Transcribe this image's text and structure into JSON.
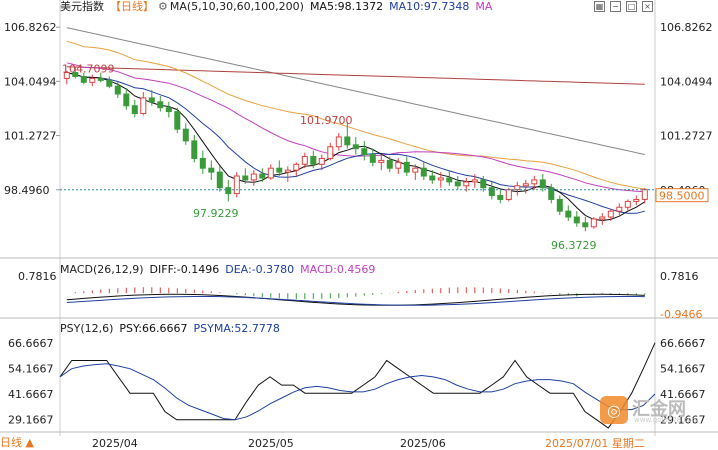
{
  "header": {
    "symbol": "美元指数",
    "period": "【日线】",
    "ma_label": "MA(5,10,30,60,100,200)",
    "ma5": "MA5:98.1372",
    "ma10": "MA10:97.7348",
    "ma_more": "MA"
  },
  "macd_header": {
    "label": "MACD(26,12,9)",
    "diff": "DIFF:-0.1496",
    "dea": "DEA:-0.3780",
    "macd": "MACD:0.4569"
  },
  "psy_header": {
    "label": "PSY(12,6)",
    "psy": "PSY:66.6667",
    "psyma": "PSYMA:52.7778"
  },
  "bottom_tab": "日线 ▲",
  "watermark": {
    "text": "汇金网",
    "url": "www.gold678.com",
    "icon": "gold-logo-icon"
  },
  "colors": {
    "up": "#e04040",
    "down": "#3a9a3a",
    "ma5": "#111111",
    "ma10": "#2040a0",
    "ma30": "#c040c0",
    "ma60": "#e8a040",
    "ma100": "#b04040",
    "ma200": "#888888",
    "price_line": "#2a8aa8",
    "highlight": "#e87722"
  },
  "chart_data": [
    {
      "type": "candlestick",
      "title": "美元指数",
      "x": [
        "2025/04",
        "2025/05",
        "2025/06",
        "2025/07/01 星期二"
      ],
      "y_ticks": [
        "106.8262",
        "104.0494",
        "101.2727",
        "98.4960"
      ],
      "ylim": [
        95.0,
        107.5
      ],
      "last_price": "98.5000",
      "last_price_value": 98.5,
      "annotations": [
        {
          "text": "104.7099",
          "value": 104.7099
        },
        {
          "text": "101.9700",
          "value": 101.97
        },
        {
          "text": "97.9229",
          "value": 97.9229
        },
        {
          "text": "96.3729",
          "value": 96.3729
        }
      ],
      "candles": [
        [
          104.2,
          104.6,
          103.9,
          104.5
        ],
        [
          104.5,
          104.8,
          104.2,
          104.3
        ],
        [
          104.3,
          104.5,
          103.9,
          104.0
        ],
        [
          104.0,
          104.4,
          103.8,
          104.2
        ],
        [
          104.2,
          104.5,
          104.0,
          104.1
        ],
        [
          104.1,
          104.3,
          103.7,
          103.8
        ],
        [
          103.8,
          104.0,
          103.2,
          103.4
        ],
        [
          103.4,
          103.7,
          102.6,
          102.8
        ],
        [
          102.8,
          103.1,
          102.2,
          102.4
        ],
        [
          102.4,
          103.5,
          102.3,
          103.2
        ],
        [
          103.2,
          103.6,
          102.8,
          103.0
        ],
        [
          103.0,
          103.3,
          102.5,
          102.7
        ],
        [
          102.7,
          103.0,
          102.2,
          102.5
        ],
        [
          102.5,
          102.7,
          101.4,
          101.6
        ],
        [
          101.6,
          101.9,
          100.8,
          101.0
        ],
        [
          101.0,
          101.3,
          99.9,
          100.1
        ],
        [
          100.1,
          100.5,
          99.3,
          99.6
        ],
        [
          99.6,
          100.0,
          99.0,
          99.4
        ],
        [
          99.4,
          99.7,
          98.4,
          98.6
        ],
        [
          98.6,
          99.0,
          97.9,
          98.3
        ],
        [
          98.3,
          99.4,
          98.1,
          99.2
        ],
        [
          99.2,
          99.6,
          98.8,
          99.0
        ],
        [
          99.0,
          99.5,
          98.7,
          99.3
        ],
        [
          99.3,
          99.6,
          98.9,
          99.1
        ],
        [
          99.1,
          99.8,
          99.0,
          99.6
        ],
        [
          99.6,
          100.0,
          99.2,
          99.4
        ],
        [
          99.4,
          99.7,
          98.9,
          99.5
        ],
        [
          99.5,
          99.9,
          99.2,
          99.8
        ],
        [
          99.8,
          100.4,
          99.6,
          100.2
        ],
        [
          100.2,
          100.5,
          99.6,
          99.8
        ],
        [
          99.8,
          100.3,
          99.5,
          100.1
        ],
        [
          100.1,
          100.9,
          100.0,
          100.7
        ],
        [
          100.7,
          101.4,
          100.5,
          101.2
        ],
        [
          101.2,
          101.97,
          100.6,
          100.8
        ],
        [
          100.8,
          101.2,
          100.3,
          100.6
        ],
        [
          100.6,
          101.0,
          100.0,
          100.3
        ],
        [
          100.3,
          100.6,
          99.7,
          99.9
        ],
        [
          99.9,
          100.3,
          99.5,
          100.0
        ],
        [
          100.0,
          100.2,
          99.4,
          99.6
        ],
        [
          99.6,
          100.1,
          99.3,
          99.9
        ],
        [
          99.9,
          100.2,
          99.2,
          99.4
        ],
        [
          99.4,
          99.8,
          99.0,
          99.6
        ],
        [
          99.6,
          99.9,
          99.0,
          99.2
        ],
        [
          99.2,
          99.5,
          98.8,
          99.0
        ],
        [
          99.0,
          99.4,
          98.6,
          99.1
        ],
        [
          99.1,
          99.5,
          98.7,
          98.9
        ],
        [
          98.9,
          99.2,
          98.5,
          98.7
        ],
        [
          98.7,
          99.1,
          98.4,
          98.9
        ],
        [
          98.9,
          99.3,
          98.6,
          99.0
        ],
        [
          99.0,
          99.2,
          98.4,
          98.6
        ],
        [
          98.6,
          98.9,
          98.0,
          98.2
        ],
        [
          98.2,
          98.5,
          97.8,
          98.0
        ],
        [
          98.0,
          98.6,
          97.9,
          98.5
        ],
        [
          98.5,
          98.9,
          98.2,
          98.7
        ],
        [
          98.7,
          99.0,
          98.3,
          98.8
        ],
        [
          98.8,
          99.2,
          98.5,
          99.0
        ],
        [
          99.0,
          99.3,
          98.4,
          98.6
        ],
        [
          98.6,
          98.8,
          97.8,
          98.0
        ],
        [
          98.0,
          98.2,
          97.2,
          97.4
        ],
        [
          97.4,
          97.7,
          96.9,
          97.1
        ],
        [
          97.1,
          97.4,
          96.6,
          96.8
        ],
        [
          96.8,
          97.1,
          96.37,
          96.6
        ],
        [
          96.6,
          97.1,
          96.5,
          97.0
        ],
        [
          97.0,
          97.3,
          96.7,
          97.1
        ],
        [
          97.1,
          97.5,
          96.9,
          97.4
        ],
        [
          97.4,
          97.8,
          97.2,
          97.6
        ],
        [
          97.6,
          98.0,
          97.4,
          97.9
        ],
        [
          97.9,
          98.2,
          97.7,
          98.0
        ],
        [
          98.0,
          98.6,
          97.8,
          98.5
        ]
      ]
    },
    {
      "type": "macd",
      "title": "MACD(26,12,9)",
      "y_ticks": [
        "0.7816",
        "-0.9466"
      ],
      "ylim": [
        -0.9466,
        0.7816
      ],
      "diff": -0.1496,
      "dea": -0.378,
      "macd": 0.4569
    },
    {
      "type": "line",
      "title": "PSY(12,6)",
      "y_ticks": [
        "66.6667",
        "54.1667",
        "41.6667",
        "29.1667"
      ],
      "ylim": [
        25,
        70
      ],
      "psy": 66.6667,
      "psyma": 52.7778
    }
  ]
}
